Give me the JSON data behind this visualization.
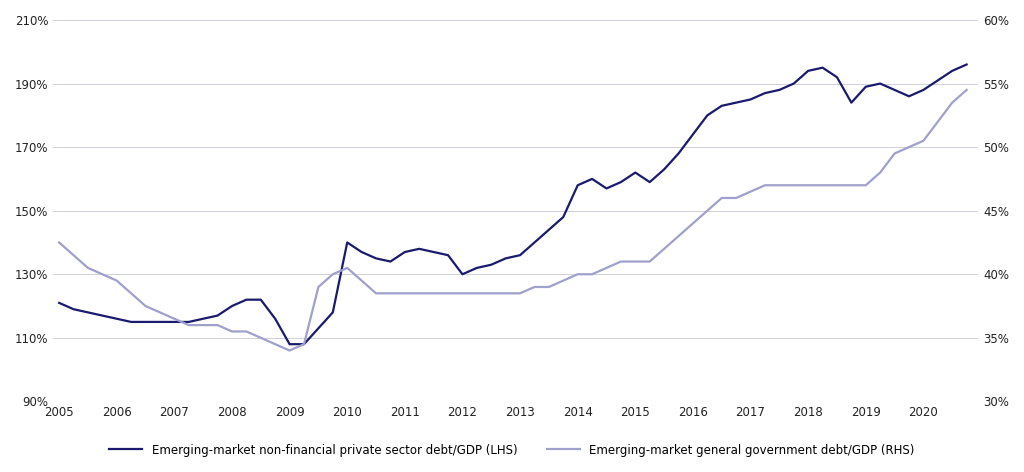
{
  "title": "",
  "lhs_label": "Emerging-market non-financial private sector debt/GDP (LHS)",
  "rhs_label": "Emerging-market general government debt/GDP (RHS)",
  "lhs_color": "#1a1a6e",
  "rhs_color": "#a0a0cc",
  "background_color": "#ffffff",
  "grid_color": "#d0d0d8",
  "ylim_lhs": [
    90,
    210
  ],
  "ylim_rhs": [
    30,
    60
  ],
  "yticks_lhs": [
    90,
    110,
    130,
    150,
    170,
    190,
    210
  ],
  "yticks_rhs": [
    30,
    35,
    40,
    45,
    50,
    55,
    60
  ],
  "years": [
    2005,
    2005.25,
    2005.5,
    2005.75,
    2006,
    2006.25,
    2006.5,
    2006.75,
    2007,
    2007.25,
    2007.5,
    2007.75,
    2008,
    2008.25,
    2008.5,
    2008.75,
    2009,
    2009.25,
    2009.5,
    2009.75,
    2010,
    2010.25,
    2010.5,
    2010.75,
    2011,
    2011.25,
    2011.5,
    2011.75,
    2012,
    2012.25,
    2012.5,
    2012.75,
    2013,
    2013.25,
    2013.5,
    2013.75,
    2014,
    2014.25,
    2014.5,
    2014.75,
    2015,
    2015.25,
    2015.5,
    2015.75,
    2016,
    2016.25,
    2016.5,
    2016.75,
    2017,
    2017.25,
    2017.5,
    2017.75,
    2018,
    2018.25,
    2018.5,
    2018.75,
    2019,
    2019.25,
    2019.5,
    2019.75,
    2020,
    2020.25,
    2020.5,
    2020.75
  ],
  "lhs_values": [
    121,
    119,
    118,
    117,
    116,
    115,
    115,
    115,
    115,
    115,
    116,
    117,
    120,
    122,
    122,
    116,
    108,
    108,
    113,
    118,
    140,
    137,
    135,
    134,
    137,
    138,
    137,
    136,
    130,
    132,
    133,
    135,
    136,
    140,
    144,
    148,
    158,
    160,
    157,
    159,
    162,
    159,
    163,
    168,
    174,
    180,
    183,
    184,
    185,
    187,
    188,
    190,
    194,
    195,
    192,
    184,
    189,
    190,
    188,
    186,
    188,
    191,
    194,
    196
  ],
  "rhs_values": [
    42.5,
    41.5,
    40.5,
    40.0,
    39.5,
    38.5,
    37.5,
    37.0,
    36.5,
    36.0,
    36.0,
    36.0,
    35.5,
    35.5,
    35.0,
    34.5,
    34.0,
    34.5,
    39.0,
    40.0,
    40.5,
    39.5,
    38.5,
    38.5,
    38.5,
    38.5,
    38.5,
    38.5,
    38.5,
    38.5,
    38.5,
    38.5,
    38.5,
    39.0,
    39.0,
    39.5,
    40.0,
    40.0,
    40.5,
    41.0,
    41.0,
    41.0,
    42.0,
    43.0,
    44.0,
    45.0,
    46.0,
    46.0,
    46.5,
    47.0,
    47.0,
    47.0,
    47.0,
    47.0,
    47.0,
    47.0,
    47.0,
    48.0,
    49.5,
    50.0,
    50.5,
    52.0,
    53.5,
    54.5
  ],
  "xticks": [
    2005,
    2006,
    2007,
    2008,
    2009,
    2010,
    2011,
    2012,
    2013,
    2014,
    2015,
    2016,
    2017,
    2018,
    2019,
    2020
  ],
  "linewidth": 1.6,
  "legend_fontsize": 8.5,
  "tick_fontsize": 8.5
}
